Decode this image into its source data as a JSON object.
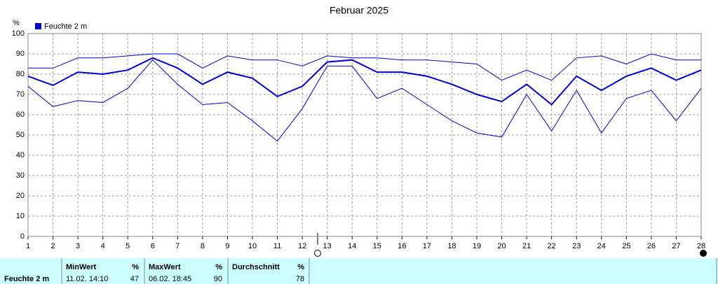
{
  "chart_data": {
    "type": "line",
    "title": "Februar 2025",
    "y_label": "%",
    "x": [
      1,
      2,
      3,
      4,
      5,
      6,
      7,
      8,
      9,
      10,
      11,
      12,
      13,
      14,
      15,
      16,
      17,
      18,
      19,
      20,
      21,
      22,
      23,
      24,
      25,
      26,
      27,
      28
    ],
    "xlim": [
      1,
      28
    ],
    "xticks": [
      1,
      2,
      3,
      4,
      5,
      6,
      7,
      8,
      9,
      10,
      11,
      12,
      13,
      14,
      15,
      16,
      17,
      18,
      19,
      20,
      21,
      22,
      23,
      24,
      25,
      26,
      27,
      28
    ],
    "ylim": [
      0,
      100
    ],
    "yticks": [
      0,
      10,
      20,
      30,
      40,
      50,
      60,
      70,
      80,
      90,
      100
    ],
    "grid": true,
    "series": [
      {
        "color": "#0000cc",
        "values": [
          83,
          83,
          88,
          88,
          89,
          90,
          90,
          83,
          89,
          87,
          87,
          84,
          89,
          88,
          88,
          87,
          87,
          86,
          85,
          77,
          82,
          77,
          88,
          89,
          85,
          90,
          87,
          87
        ]
      },
      {
        "name": "Feuchte  2 m",
        "color": "#0000cc",
        "values": [
          79,
          74.5,
          81,
          80,
          82,
          88,
          83,
          75,
          81,
          78,
          69,
          74,
          86,
          87,
          81,
          81,
          79,
          75,
          70,
          66.5,
          75,
          65,
          79,
          72,
          79,
          83,
          77,
          82
        ]
      },
      {
        "color": "#0000cc",
        "values": [
          74,
          64,
          67,
          66,
          73,
          87,
          75,
          65,
          66,
          57,
          47,
          63,
          84,
          84,
          68,
          73,
          65,
          57,
          51,
          49,
          70,
          52,
          72,
          51,
          68,
          72,
          57,
          73
        ]
      }
    ]
  },
  "table": {
    "header": [
      "MinWert",
      "%",
      "MaxWert",
      "%",
      "Durchschnitt",
      "%"
    ],
    "row": [
      "Feuchte  2 m",
      "11.02.  14:10",
      47,
      "06.02.  18:45",
      90,
      78
    ]
  }
}
